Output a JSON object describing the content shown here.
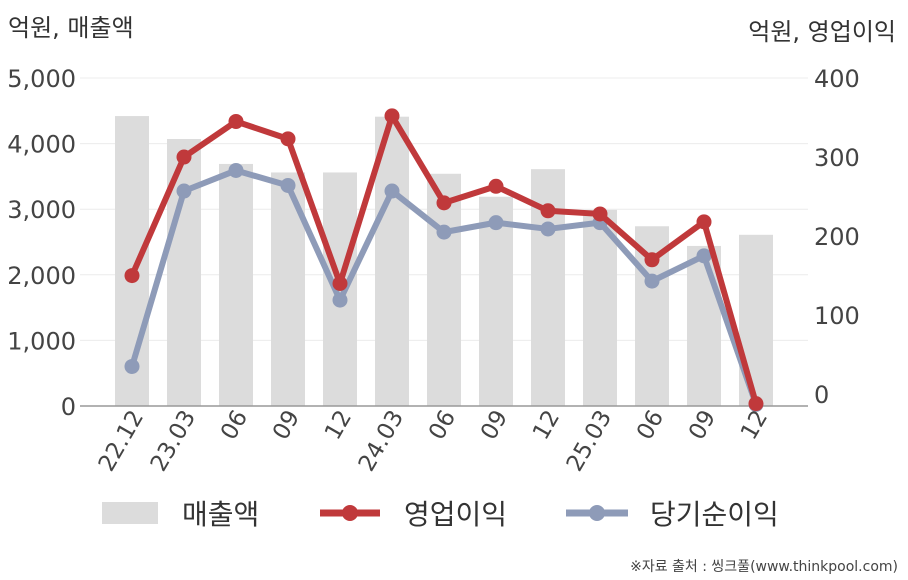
{
  "chart_data": {
    "type": "bar+line",
    "categories": [
      "22.12",
      "23.03",
      "06",
      "09",
      "12",
      "24.03",
      "06",
      "09",
      "12",
      "25.03",
      "06",
      "09",
      "12"
    ],
    "left_axis": {
      "unit_label": "억원, 매출액",
      "ylim": [
        0,
        5000
      ],
      "ticks": [
        "0",
        "1,000",
        "2,000",
        "3,000",
        "4,000",
        "5,000"
      ]
    },
    "right_axis": {
      "unit_label": "억원, 영업이익",
      "ylim": [
        -15,
        400
      ],
      "ticks": [
        "0",
        "100",
        "200",
        "300",
        "400"
      ]
    },
    "series": [
      {
        "name": "매출액",
        "type": "bar",
        "axis": "left",
        "color": "#dcdcdc",
        "values": [
          4420,
          4070,
          3690,
          3560,
          3560,
          4410,
          3540,
          3190,
          3610,
          2990,
          2740,
          2440,
          2610
        ]
      },
      {
        "name": "영업이익",
        "type": "line",
        "axis": "right",
        "color": "#c0393b",
        "values": [
          150,
          300,
          345,
          323,
          140,
          352,
          242,
          263,
          232,
          228,
          170,
          218,
          -12
        ]
      },
      {
        "name": "당기순이익",
        "type": "line",
        "axis": "right",
        "color": "#8e9bb8",
        "values": [
          35,
          257,
          283,
          264,
          119,
          257,
          205,
          217,
          209,
          217,
          143,
          175,
          -13
        ]
      }
    ],
    "grid": true,
    "legend_position": "bottom"
  },
  "source_text": "※자료 출처 : 씽크풀(www.thinkpool.com)"
}
